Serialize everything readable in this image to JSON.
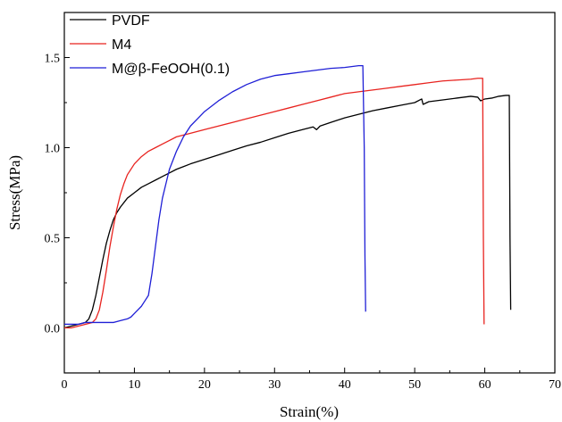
{
  "chart_data": {
    "type": "line",
    "title": "",
    "xlabel": "Strain(%)",
    "ylabel": "Stress(MPa)",
    "xlim": [
      0,
      70
    ],
    "ylim": [
      -0.25,
      1.75
    ],
    "x_ticks": [
      "0",
      "10",
      "20",
      "30",
      "40",
      "50",
      "60",
      "70"
    ],
    "y_ticks": [
      "0.0",
      "0.5",
      "1.0",
      "1.5"
    ],
    "x_tick_values": [
      0,
      10,
      20,
      30,
      40,
      50,
      60,
      70
    ],
    "y_tick_values": [
      0,
      0.5,
      1.0,
      1.5
    ],
    "legend_position": "top-left",
    "grid": false,
    "series": [
      {
        "name": "PVDF",
        "color": "#000000",
        "x": [
          0,
          1,
          2,
          3,
          3.5,
          4,
          4.5,
          5,
          5.5,
          6,
          6.5,
          7,
          7.5,
          8,
          9,
          10,
          11,
          12,
          13,
          14,
          15,
          16,
          17,
          18,
          20,
          22,
          24,
          26,
          28,
          30,
          32,
          34,
          35.5,
          36,
          36.5,
          38,
          40,
          42,
          44,
          46,
          48,
          50,
          51,
          51.2,
          52,
          54,
          56,
          58,
          59,
          59.4,
          60,
          61,
          62,
          63,
          63.5,
          63.6,
          63.7
        ],
        "y": [
          0.0,
          0.01,
          0.02,
          0.03,
          0.05,
          0.1,
          0.18,
          0.28,
          0.38,
          0.47,
          0.54,
          0.6,
          0.64,
          0.67,
          0.72,
          0.75,
          0.78,
          0.8,
          0.82,
          0.84,
          0.86,
          0.88,
          0.895,
          0.91,
          0.935,
          0.96,
          0.985,
          1.01,
          1.03,
          1.055,
          1.08,
          1.1,
          1.115,
          1.1,
          1.12,
          1.14,
          1.165,
          1.185,
          1.205,
          1.22,
          1.235,
          1.25,
          1.27,
          1.24,
          1.255,
          1.265,
          1.275,
          1.285,
          1.28,
          1.26,
          1.27,
          1.275,
          1.285,
          1.29,
          1.29,
          0.5,
          0.1
        ]
      },
      {
        "name": "M4",
        "color": "#e8231f",
        "x": [
          0,
          1,
          2,
          3,
          4,
          4.5,
          5,
          5.5,
          6,
          6.5,
          7,
          7.5,
          8,
          8.5,
          9,
          10,
          11,
          12,
          13,
          14,
          15,
          16,
          18,
          20,
          22,
          24,
          26,
          28,
          30,
          32,
          34,
          36,
          38,
          40,
          42,
          44,
          46,
          48,
          50,
          52,
          54,
          56,
          58,
          59,
          59.7,
          59.8,
          59.9
        ],
        "y": [
          0.0,
          0.0,
          0.01,
          0.02,
          0.03,
          0.05,
          0.1,
          0.2,
          0.32,
          0.45,
          0.56,
          0.66,
          0.74,
          0.8,
          0.85,
          0.91,
          0.95,
          0.98,
          1.0,
          1.02,
          1.04,
          1.06,
          1.08,
          1.1,
          1.12,
          1.14,
          1.16,
          1.18,
          1.2,
          1.22,
          1.24,
          1.26,
          1.28,
          1.3,
          1.31,
          1.32,
          1.33,
          1.34,
          1.35,
          1.36,
          1.37,
          1.375,
          1.38,
          1.385,
          1.385,
          0.5,
          0.02
        ]
      },
      {
        "name": "M@β-FeOOH(0.1)",
        "color": "#1f1fd6",
        "x": [
          0,
          1,
          2,
          3,
          4,
          5,
          6,
          7,
          8,
          9,
          9.5,
          10,
          10.5,
          11,
          11.5,
          12,
          12.5,
          13,
          13.5,
          14,
          14.5,
          15,
          16,
          17,
          18,
          19,
          20,
          22,
          24,
          26,
          28,
          30,
          32,
          34,
          36,
          38,
          40,
          41,
          42,
          42.6,
          42.8,
          42.9,
          43.0
        ],
        "y": [
          0.02,
          0.02,
          0.02,
          0.03,
          0.03,
          0.03,
          0.03,
          0.03,
          0.04,
          0.05,
          0.06,
          0.08,
          0.1,
          0.12,
          0.15,
          0.18,
          0.3,
          0.45,
          0.6,
          0.72,
          0.8,
          0.88,
          0.98,
          1.06,
          1.12,
          1.16,
          1.2,
          1.26,
          1.31,
          1.35,
          1.38,
          1.4,
          1.41,
          1.42,
          1.43,
          1.44,
          1.445,
          1.45,
          1.455,
          1.455,
          1.0,
          0.4,
          0.09
        ]
      }
    ]
  }
}
